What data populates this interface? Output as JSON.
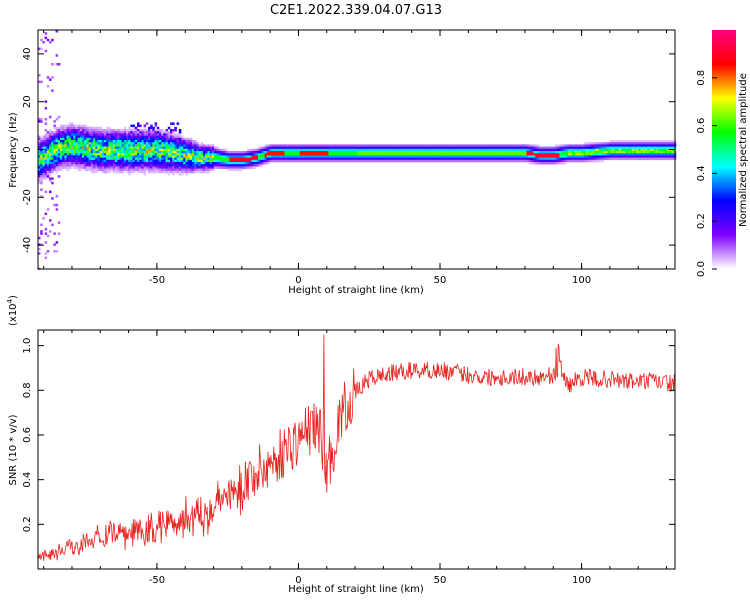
{
  "title": "C2E1.2022.339.04.07.G13",
  "chart_data": [
    {
      "type": "heatmap",
      "xlabel": "Height of straight line (km)",
      "ylabel": "Frequency (Hz)",
      "xlim": [
        -92,
        133
      ],
      "ylim": [
        -50,
        50
      ],
      "xticks": [
        -50,
        0,
        50,
        100
      ],
      "yticks": [
        -40,
        -20,
        0,
        20,
        40
      ],
      "colorbar": {
        "label": "Normalized spectral amplitude",
        "range": [
          0,
          1
        ],
        "ticks": [
          0.0,
          0.2,
          0.4,
          0.6,
          0.8
        ],
        "colormap": [
          "#ffffff",
          "#7f00ff",
          "#0000ff",
          "#00ffff",
          "#00ff00",
          "#ffff00",
          "#ff0000",
          "#ff0080"
        ]
      },
      "ridge": {
        "x": [
          -92,
          -85,
          -80,
          -70,
          -60,
          -50,
          -40,
          -35,
          -30,
          -25,
          -20,
          -15,
          -10,
          0,
          10,
          20,
          40,
          60,
          80,
          85,
          90,
          95,
          100,
          110,
          120,
          133
        ],
        "freq": [
          -4,
          1,
          2,
          0,
          0,
          0,
          -2,
          -3,
          -3,
          -4,
          -4,
          -3,
          -1,
          -1,
          -1,
          -1,
          -1,
          -1,
          -1,
          -2,
          -2,
          -1,
          -1,
          0,
          0,
          0
        ],
        "width": [
          6,
          6,
          6,
          6,
          6,
          6,
          5,
          4,
          3.5,
          3,
          3,
          3,
          3,
          3,
          3,
          3,
          3,
          3,
          3,
          3,
          3,
          3,
          3,
          3,
          3,
          3
        ]
      }
    },
    {
      "type": "line",
      "xlabel": "Height of straight line (km)",
      "ylabel": "SNR (10 * v/v)",
      "ymultiplier": "(x10",
      "yexponent": "4",
      "ymultiplier_close": ")",
      "xlim": [
        -92,
        133
      ],
      "ylim": [
        0,
        1.07
      ],
      "xticks": [
        -50,
        0,
        50,
        100
      ],
      "yticks": [
        0.2,
        0.4,
        0.6,
        0.8,
        1.0
      ],
      "color": "#e8221f",
      "series": [
        {
          "x": [
            -92,
            -85,
            -80,
            -75,
            -70,
            -65,
            -60,
            -55,
            -50,
            -45,
            -40,
            -35,
            -30,
            -25,
            -20,
            -15,
            -10,
            -5,
            0,
            3,
            6,
            8,
            10,
            13,
            15,
            18,
            20,
            25,
            30,
            35,
            40,
            45,
            50,
            55,
            60,
            65,
            70,
            75,
            80,
            85,
            90,
            93,
            95,
            100,
            105,
            110,
            115,
            120,
            125,
            133
          ],
          "y": [
            0.05,
            0.08,
            0.1,
            0.13,
            0.14,
            0.15,
            0.16,
            0.17,
            0.19,
            0.21,
            0.23,
            0.25,
            0.28,
            0.33,
            0.38,
            0.43,
            0.47,
            0.53,
            0.58,
            0.62,
            0.64,
            0.6,
            0.45,
            0.57,
            0.7,
            0.75,
            0.79,
            0.85,
            0.87,
            0.88,
            0.89,
            0.89,
            0.89,
            0.88,
            0.87,
            0.86,
            0.86,
            0.86,
            0.86,
            0.86,
            0.87,
            0.9,
            0.82,
            0.86,
            0.85,
            0.85,
            0.84,
            0.84,
            0.84,
            0.83
          ]
        }
      ]
    }
  ]
}
